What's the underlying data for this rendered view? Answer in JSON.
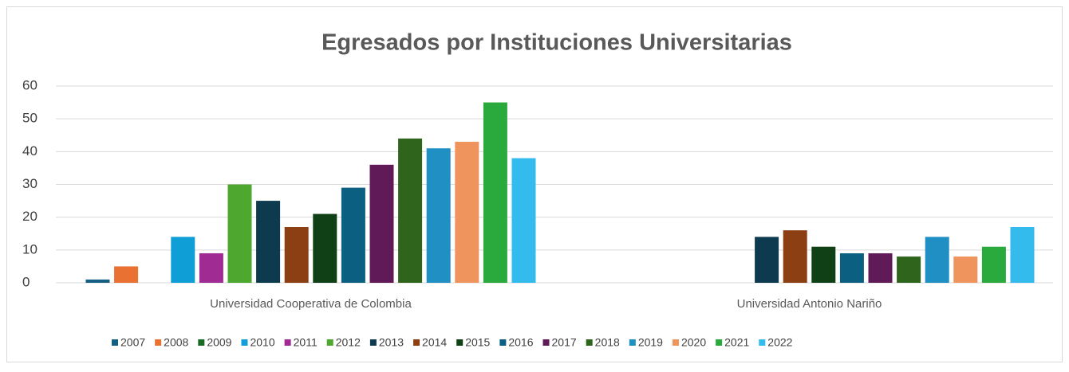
{
  "chart_data": {
    "type": "bar",
    "title": "Egresados por Instituciones Universitarias",
    "categories": [
      "Universidad Cooperativa de Colombia",
      "Universidad Antonio Nariño"
    ],
    "series": [
      {
        "name": "2007",
        "color": "#156082",
        "values": [
          1,
          null
        ]
      },
      {
        "name": "2008",
        "color": "#E97132",
        "values": [
          5,
          null
        ]
      },
      {
        "name": "2009",
        "color": "#196B24",
        "values": [
          null,
          null
        ]
      },
      {
        "name": "2010",
        "color": "#0F9ED5",
        "values": [
          14,
          null
        ]
      },
      {
        "name": "2011",
        "color": "#A02B93",
        "values": [
          9,
          null
        ]
      },
      {
        "name": "2012",
        "color": "#4EA72E",
        "values": [
          30,
          null
        ]
      },
      {
        "name": "2013",
        "color": "#0D3A4E",
        "values": [
          25,
          14
        ]
      },
      {
        "name": "2014",
        "color": "#8B3F12",
        "values": [
          17,
          16
        ]
      },
      {
        "name": "2015",
        "color": "#0F4016",
        "values": [
          21,
          11
        ]
      },
      {
        "name": "2016",
        "color": "#0B5F80",
        "values": [
          29,
          9
        ]
      },
      {
        "name": "2017",
        "color": "#601A58",
        "values": [
          36,
          9
        ]
      },
      {
        "name": "2018",
        "color": "#2F641C",
        "values": [
          44,
          8
        ]
      },
      {
        "name": "2019",
        "color": "#1F8FC4",
        "values": [
          41,
          14
        ]
      },
      {
        "name": "2020",
        "color": "#F0945E",
        "values": [
          43,
          8
        ]
      },
      {
        "name": "2021",
        "color": "#2AAA3C",
        "values": [
          55,
          11
        ]
      },
      {
        "name": "2022",
        "color": "#33BBEE",
        "values": [
          38,
          17
        ]
      }
    ],
    "ylim": [
      0,
      60
    ],
    "yticks": [
      0,
      10,
      20,
      30,
      40,
      50,
      60
    ],
    "grid": true,
    "legend": "bottom"
  }
}
